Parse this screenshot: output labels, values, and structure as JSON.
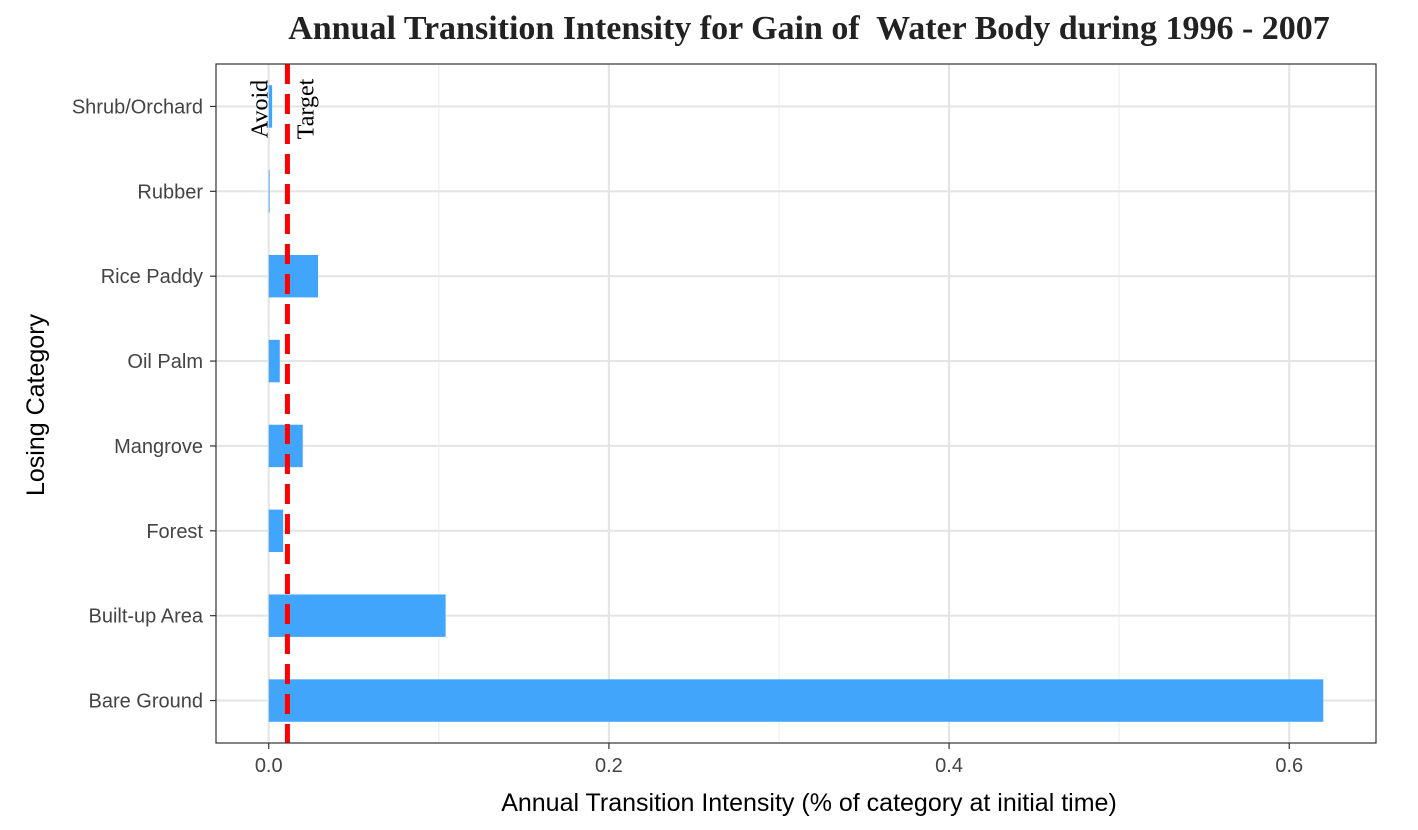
{
  "chart_data": {
    "type": "bar",
    "orientation": "horizontal",
    "title": "Annual Transition Intensity for Gain of  Water Body during 1996 - 2007",
    "xlabel": "Annual Transition Intensity (% of category at initial time)",
    "ylabel": "Losing Category",
    "categories": [
      "Shrub/Orchard",
      "Rubber",
      "Rice Paddy",
      "Oil Palm",
      "Mangrove",
      "Forest",
      "Built-up Area",
      "Bare Ground"
    ],
    "values": [
      0.002,
      0.0005,
      0.029,
      0.0065,
      0.02,
      0.0085,
      0.104,
      0.62
    ],
    "xlim": [
      -0.031,
      0.651
    ],
    "xticks": [
      0.0,
      0.2,
      0.4,
      0.6
    ],
    "xtick_labels": [
      "0.0",
      "0.2",
      "0.4",
      "0.6"
    ],
    "grid": true,
    "bar_color": "#42A5FC",
    "reference_line": {
      "value": 0.011,
      "color": "#FF0000",
      "style": "dashed"
    },
    "annotations": [
      "Avoid",
      "Target"
    ]
  }
}
